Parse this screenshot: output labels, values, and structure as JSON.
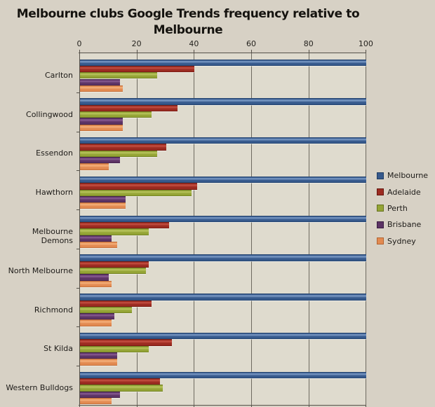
{
  "title": {
    "lines": [
      "Melbourne clubs Google Trends frequency relative to",
      "Melbourne"
    ],
    "full": "Melbourne clubs Google Trends frequency relative to Melbourne"
  },
  "colors": {
    "page_background": "#d7d1c5",
    "plot_background": "#dfdbce",
    "gridline": "#6e6a60",
    "axis": "#56524a",
    "text": "#1d1b18"
  },
  "chart_data": {
    "type": "bar",
    "orientation": "horizontal",
    "title": "Melbourne clubs Google Trends frequency relative to Melbourne",
    "xlabel": "",
    "ylabel": "",
    "xlim": [
      0,
      100
    ],
    "x_ticks": [
      0,
      20,
      40,
      60,
      80,
      100
    ],
    "grid": "vertical",
    "legend_position": "right",
    "categories": [
      "Carlton",
      "Collingwood",
      "Essendon",
      "Hawthorn",
      "Melbourne Demons",
      "North Melbourne",
      "Richmond",
      "St Kilda",
      "Western Bulldogs"
    ],
    "series": [
      {
        "name": "Melbourne",
        "color": "#36598c",
        "light": "#7e9ec9",
        "dark": "#1e3c63",
        "values": [
          100,
          100,
          100,
          100,
          100,
          100,
          100,
          100,
          100
        ]
      },
      {
        "name": "Adelaide",
        "color": "#9c2b21",
        "light": "#c65143",
        "dark": "#67170f",
        "values": [
          40,
          34,
          30,
          41,
          31,
          24,
          25,
          32,
          28
        ]
      },
      {
        "name": "Perth",
        "color": "#94a435",
        "light": "#bac65f",
        "dark": "#66731f",
        "values": [
          27,
          25,
          27,
          39,
          24,
          23,
          18,
          24,
          29
        ]
      },
      {
        "name": "Brisbane",
        "color": "#5c3365",
        "light": "#8a5c94",
        "dark": "#3a1d41",
        "values": [
          14,
          15,
          14,
          16,
          11,
          10,
          12,
          13,
          14
        ]
      },
      {
        "name": "Sydney",
        "color": "#e28a51",
        "light": "#f5b27c",
        "dark": "#b26432",
        "values": [
          15,
          15,
          10,
          16,
          13,
          11,
          11,
          13,
          11
        ]
      }
    ]
  }
}
